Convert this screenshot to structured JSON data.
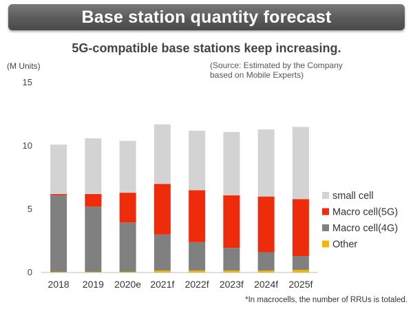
{
  "header": {
    "title": "Base station quantity forecast",
    "subtitle": "5G-compatible base stations keep increasing."
  },
  "unit_label": "(M Units)",
  "source_note": {
    "line1": "(Source: Estimated by the Company",
    "line2": "based on Mobile Experts)"
  },
  "footnote": "*In macrocells, the number of RRUs is totaled.",
  "chart_data": {
    "type": "bar",
    "stacked": true,
    "categories": [
      "2018",
      "2019",
      "2020e",
      "2021f",
      "2022f",
      "2023f",
      "2024f",
      "2025f"
    ],
    "series": [
      {
        "name": "Other",
        "color": "#f2b705",
        "values": [
          0.05,
          0.05,
          0.05,
          0.15,
          0.15,
          0.15,
          0.15,
          0.2
        ]
      },
      {
        "name": "Macro cell(4G)",
        "color": "#808080",
        "values": [
          6.05,
          5.15,
          3.9,
          2.85,
          2.25,
          1.8,
          1.45,
          1.1
        ]
      },
      {
        "name": "Macro cell(5G)",
        "color": "#ee2c0c",
        "values": [
          0.1,
          1.0,
          2.35,
          4.0,
          4.1,
          4.15,
          4.4,
          4.5
        ]
      },
      {
        "name": "small cell",
        "color": "#d3d3d3",
        "values": [
          3.9,
          4.4,
          4.1,
          4.7,
          4.7,
          5.0,
          5.3,
          5.7
        ]
      }
    ],
    "yticks": [
      0,
      5,
      10,
      15
    ],
    "ylim": [
      0,
      15
    ],
    "legend_position": "right",
    "legend_order": [
      "small cell",
      "Macro cell(5G)",
      "Macro cell(4G)",
      "Other"
    ],
    "grid": false
  }
}
